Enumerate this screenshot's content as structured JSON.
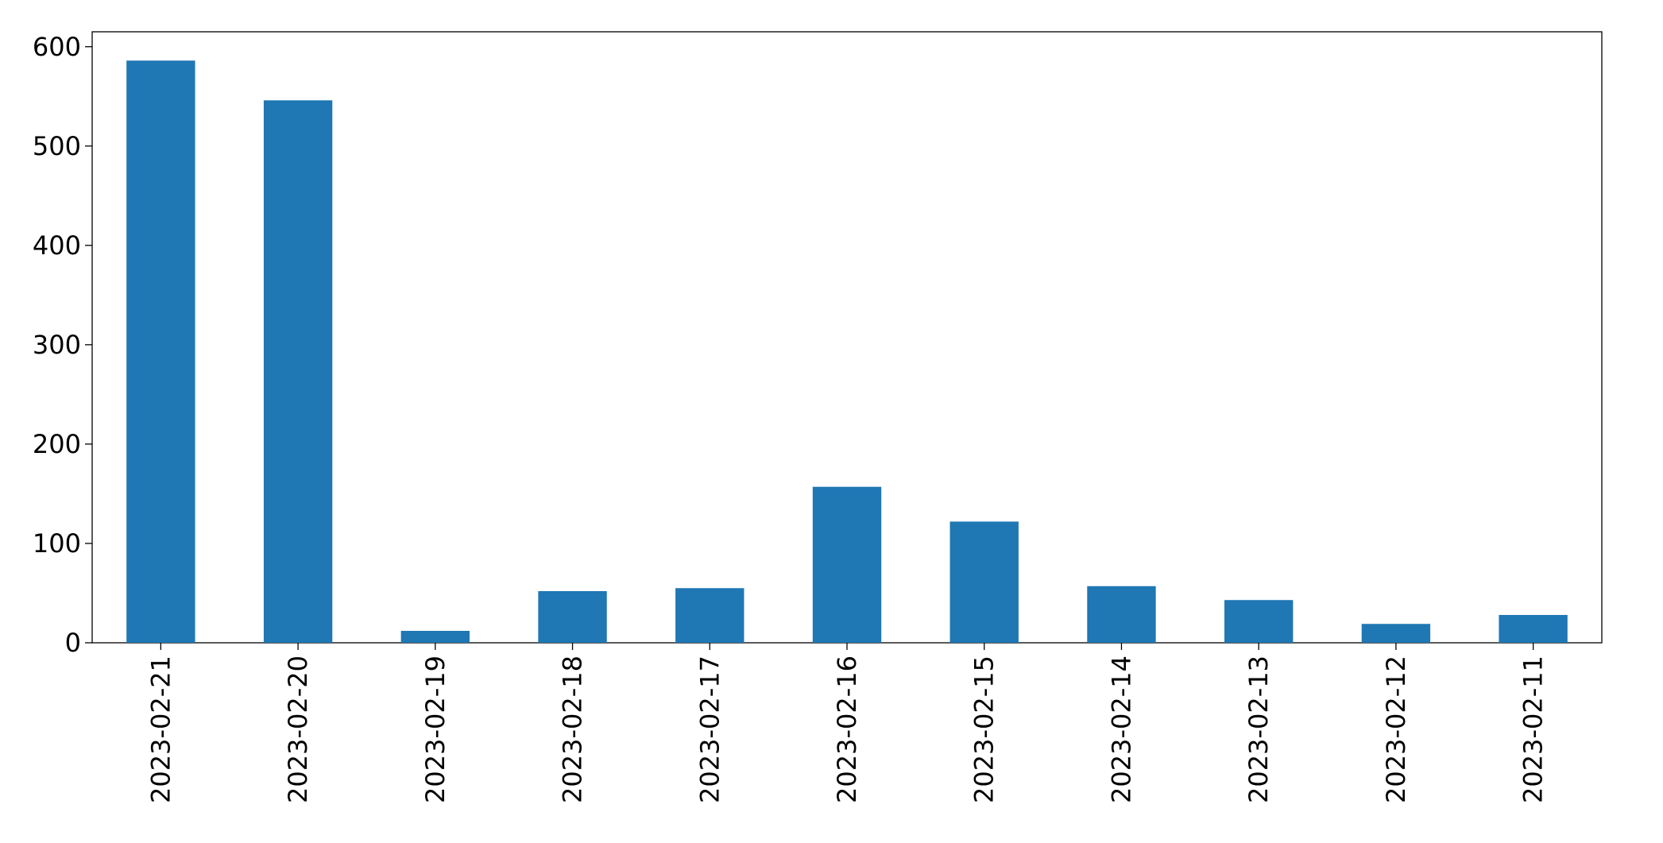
{
  "chart_data": {
    "type": "bar",
    "categories": [
      "2023-02-21",
      "2023-02-20",
      "2023-02-19",
      "2023-02-18",
      "2023-02-17",
      "2023-02-16",
      "2023-02-15",
      "2023-02-14",
      "2023-02-13",
      "2023-02-12",
      "2023-02-11"
    ],
    "values": [
      586,
      546,
      12,
      52,
      55,
      157,
      122,
      57,
      43,
      19,
      28
    ],
    "color": "#1f77b4",
    "ylim": [
      0,
      615
    ],
    "yticks": [
      0,
      100,
      200,
      300,
      400,
      500,
      600
    ],
    "grid": false
  }
}
